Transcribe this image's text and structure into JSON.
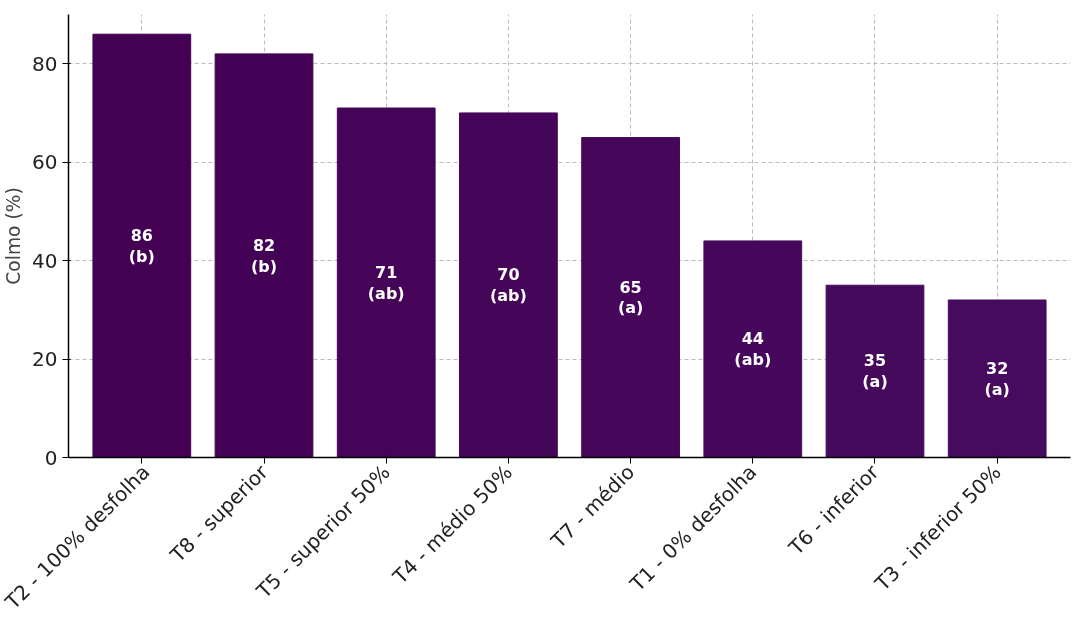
{
  "chart_data": {
    "type": "bar",
    "ylabel": "Colmo (%)",
    "categories": [
      "T2 - 100% desfolha",
      "T8 - superior",
      "T5 - superior 50%",
      "T4 - médio 50%",
      "T7 - médio",
      "T1 - 0% desfolha",
      "T6 - inferior",
      "T3 - inferior 50%"
    ],
    "values": [
      86,
      82,
      71,
      70,
      65,
      44,
      35,
      32
    ],
    "value_labels": [
      "86\n(b)",
      "82\n(b)",
      "71\n(ab)",
      "70\n(ab)",
      "65\n(a)",
      "44\n(ab)",
      "35\n(a)",
      "32\n(a)"
    ],
    "colors": [
      "#440154",
      "#440256",
      "#450457",
      "#450559",
      "#46075a",
      "#46085c",
      "#460a5d",
      "#460b5e"
    ],
    "ylim": [
      0,
      90
    ],
    "yticks": [
      0,
      20,
      40,
      60,
      80
    ],
    "grid": true
  }
}
